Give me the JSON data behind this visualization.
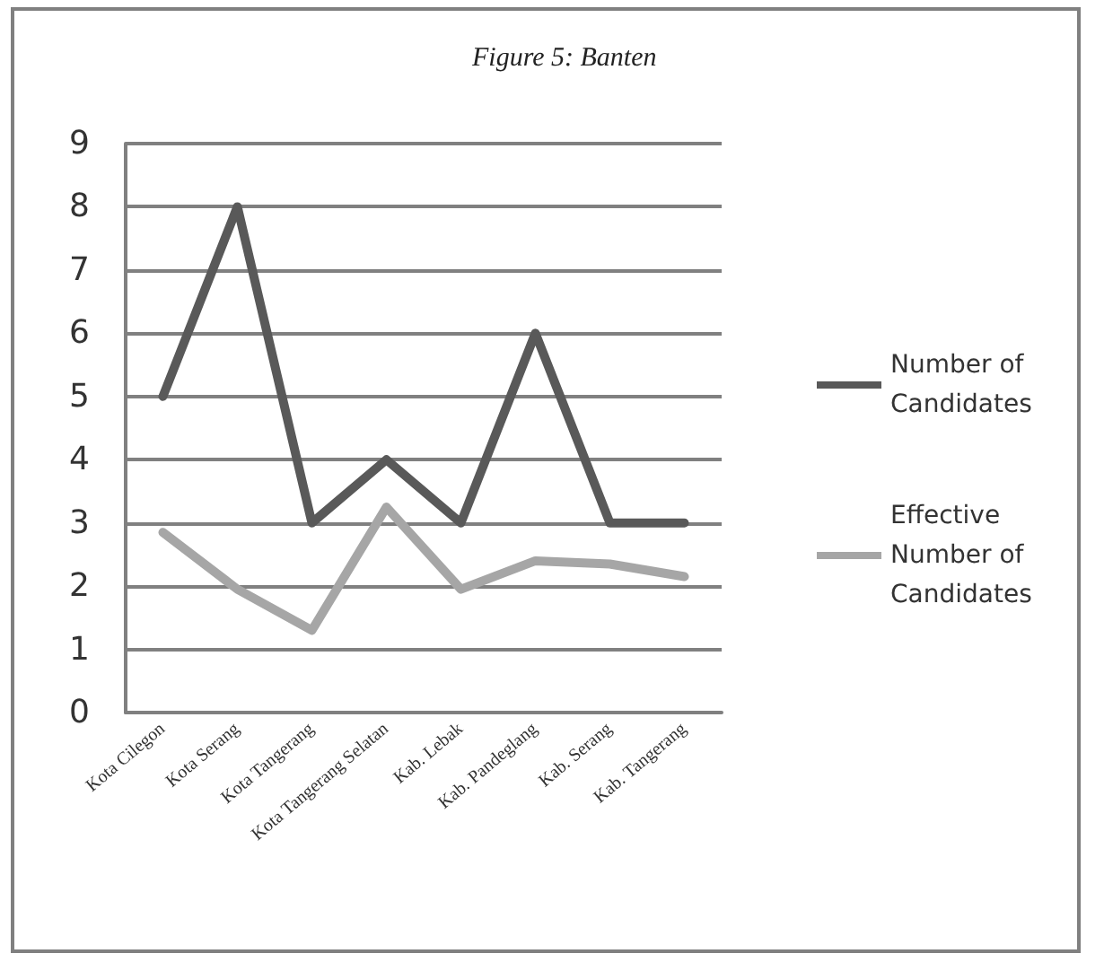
{
  "chart_data": {
    "type": "line",
    "title": "Figure 5: Banten",
    "categories": [
      "Kota Cilegon",
      "Kota Serang",
      "Kota Tangerang",
      "Kota Tangerang Selatan",
      "Kab. Lebak",
      "Kab. Pandeglang",
      "Kab. Serang",
      "Kab. Tangerang"
    ],
    "series": [
      {
        "name": "Number of Candidates",
        "color": "#595959",
        "values": [
          5,
          8,
          3,
          4,
          3,
          6,
          3,
          3
        ]
      },
      {
        "name": "Effective Number of Candidates",
        "color": "#a6a6a6",
        "values": [
          2.85,
          1.95,
          1.3,
          3.25,
          1.95,
          2.4,
          2.35,
          2.15
        ]
      }
    ],
    "ylim": [
      0,
      9
    ],
    "yticks": [
      0,
      1,
      2,
      3,
      4,
      5,
      6,
      7,
      8,
      9
    ],
    "grid": "y",
    "legend": "right",
    "marker": "none",
    "line_style": "solid"
  }
}
